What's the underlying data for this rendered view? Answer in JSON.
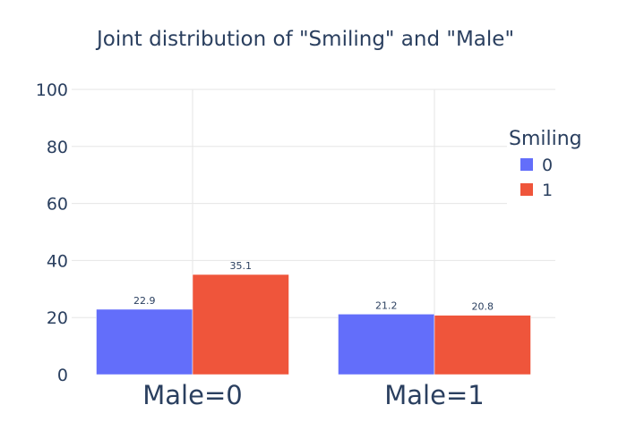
{
  "chart_data": {
    "type": "bar",
    "title": "Joint distribution of \"Smiling\" and \"Male\"",
    "categories": [
      "Male=0",
      "Male=1"
    ],
    "series": [
      {
        "name": "0",
        "values": [
          22.9,
          21.2
        ],
        "labels": [
          "22.9",
          "21.2"
        ],
        "color": "#636efa"
      },
      {
        "name": "1",
        "values": [
          35.1,
          20.8
        ],
        "labels": [
          "35.1",
          "20.8"
        ],
        "color": "#ef553b"
      }
    ],
    "yticks": [
      0,
      20,
      40,
      60,
      80,
      100
    ],
    "ylim": [
      0,
      100
    ],
    "xlabel": "",
    "ylabel": "",
    "grid": true,
    "legend": {
      "title": "Smiling",
      "placement": "top-right"
    }
  }
}
